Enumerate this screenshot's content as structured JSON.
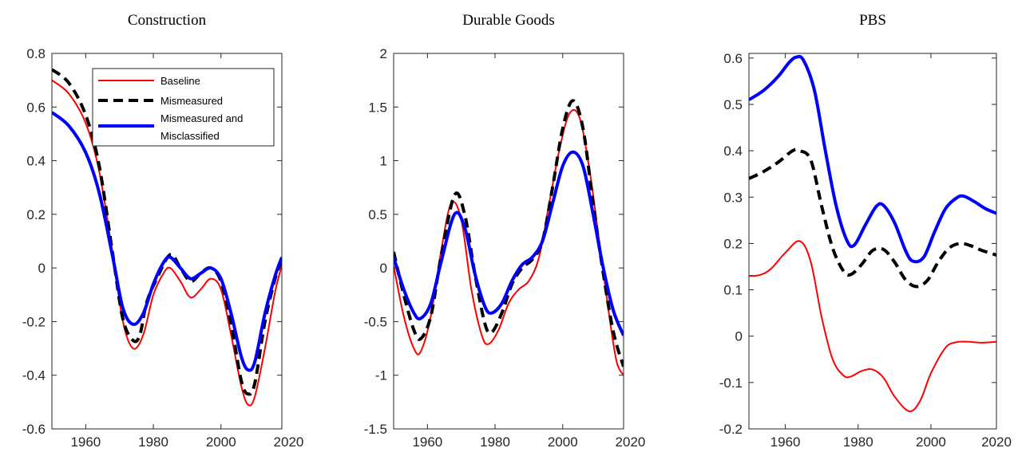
{
  "chart_data": [
    {
      "type": "line",
      "title": "Construction",
      "xlim": [
        1950,
        2018
      ],
      "ylim": [
        -0.6,
        0.8
      ],
      "xticks": [
        1960,
        1980,
        2000,
        2020
      ],
      "yticks": [
        -0.6,
        -0.4,
        -0.2,
        0,
        0.2,
        0.4,
        0.6,
        0.8
      ],
      "ytick_labels": [
        "-0.6",
        "-0.4",
        "-0.2",
        "0",
        "0.2",
        "0.4",
        "0.6",
        "0.8"
      ],
      "grid": false,
      "legend": "top-right",
      "series": [
        {
          "name": "Baseline",
          "color": "#ff0000",
          "style": "solid",
          "width": 2,
          "x": [
            1950,
            1955,
            1960,
            1964,
            1968,
            1971,
            1974,
            1977,
            1980,
            1983,
            1985,
            1988,
            1991,
            1994,
            1997,
            2000,
            2003,
            2006,
            2008,
            2010,
            2013,
            2016,
            2018
          ],
          "y": [
            0.7,
            0.65,
            0.54,
            0.36,
            0.05,
            -0.2,
            -0.3,
            -0.25,
            -0.1,
            -0.02,
            0.0,
            -0.05,
            -0.11,
            -0.08,
            -0.04,
            -0.08,
            -0.25,
            -0.44,
            -0.51,
            -0.48,
            -0.3,
            -0.09,
            0.01
          ]
        },
        {
          "name": "Mismeasured",
          "color": "#000000",
          "style": "dashed",
          "width": 4,
          "x": [
            1950,
            1955,
            1960,
            1964,
            1968,
            1971,
            1974,
            1976,
            1978,
            1981,
            1985,
            1988,
            1991,
            1994,
            1997,
            2000,
            2003,
            2006,
            2008,
            2010,
            2013,
            2016,
            2018
          ],
          "y": [
            0.74,
            0.69,
            0.57,
            0.38,
            0.05,
            -0.19,
            -0.27,
            -0.25,
            -0.13,
            -0.04,
            0.05,
            0.0,
            -0.05,
            -0.02,
            0.0,
            -0.05,
            -0.21,
            -0.42,
            -0.47,
            -0.43,
            -0.2,
            -0.04,
            0.03
          ]
        },
        {
          "name": "Mismeasured and Misclassified",
          "color": "#0000ff",
          "style": "solid",
          "width": 4,
          "x": [
            1950,
            1955,
            1960,
            1964,
            1968,
            1971,
            1974,
            1977,
            1980,
            1983,
            1985,
            1988,
            1991,
            1994,
            1997,
            2000,
            2003,
            2006,
            2008,
            2010,
            2013,
            2016,
            2018
          ],
          "y": [
            0.58,
            0.53,
            0.43,
            0.28,
            0.04,
            -0.15,
            -0.21,
            -0.17,
            -0.06,
            0.02,
            0.04,
            0.0,
            -0.04,
            -0.02,
            0.0,
            -0.04,
            -0.17,
            -0.33,
            -0.38,
            -0.35,
            -0.17,
            -0.03,
            0.04
          ]
        }
      ],
      "legend_labels": [
        "Baseline",
        "Mismeasured",
        "Mismeasured and",
        "Misclassified"
      ]
    },
    {
      "type": "line",
      "title": "Durable Goods",
      "xlim": [
        1950,
        2018
      ],
      "ylim": [
        -1.5,
        2
      ],
      "xticks": [
        1960,
        1980,
        2000,
        2020
      ],
      "yticks": [
        -1.5,
        -1,
        -0.5,
        0,
        0.5,
        1,
        1.5,
        2
      ],
      "ytick_labels": [
        "-1.5",
        "-1",
        "-0.5",
        "0",
        "0.5",
        "1",
        "1.5",
        "2"
      ],
      "grid": false,
      "series": [
        {
          "name": "Baseline",
          "color": "#ff0000",
          "style": "solid",
          "width": 2,
          "x": [
            1950,
            1953,
            1956,
            1958,
            1961,
            1964,
            1967,
            1970,
            1973,
            1976,
            1978,
            1981,
            1984,
            1987,
            1990,
            1993,
            1996,
            1999,
            2002,
            2005,
            2008,
            2011,
            2014,
            2016,
            2018
          ],
          "y": [
            0.02,
            -0.45,
            -0.75,
            -0.78,
            -0.45,
            0.15,
            0.6,
            0.45,
            -0.2,
            -0.62,
            -0.71,
            -0.58,
            -0.33,
            -0.2,
            -0.12,
            0.1,
            0.6,
            1.1,
            1.44,
            1.4,
            0.9,
            0.2,
            -0.5,
            -0.88,
            -1.0
          ]
        },
        {
          "name": "Mismeasured",
          "color": "#000000",
          "style": "dashed",
          "width": 4,
          "x": [
            1950,
            1953,
            1956,
            1958,
            1961,
            1964,
            1968,
            1971,
            1974,
            1977,
            1979,
            1982,
            1985,
            1988,
            1991,
            1994,
            1997,
            2000,
            2003,
            2006,
            2009,
            2012,
            2015,
            2018
          ],
          "y": [
            0.15,
            -0.25,
            -0.58,
            -0.66,
            -0.45,
            0.1,
            0.68,
            0.5,
            -0.05,
            -0.52,
            -0.6,
            -0.42,
            -0.15,
            0.0,
            0.08,
            0.25,
            0.75,
            1.3,
            1.56,
            1.3,
            0.6,
            -0.05,
            -0.6,
            -0.92
          ]
        },
        {
          "name": "Mismeasured and Misclassified",
          "color": "#0000ff",
          "style": "solid",
          "width": 4,
          "x": [
            1950,
            1953,
            1956,
            1958,
            1961,
            1964,
            1968,
            1971,
            1974,
            1977,
            1979,
            1982,
            1985,
            1988,
            1991,
            1994,
            1997,
            2000,
            2003,
            2006,
            2009,
            2012,
            2015,
            2018
          ],
          "y": [
            0.1,
            -0.2,
            -0.42,
            -0.47,
            -0.33,
            0.05,
            0.5,
            0.38,
            -0.05,
            -0.36,
            -0.42,
            -0.33,
            -0.12,
            0.03,
            0.1,
            0.25,
            0.6,
            0.95,
            1.08,
            0.95,
            0.5,
            0.0,
            -0.4,
            -0.63
          ]
        }
      ]
    },
    {
      "type": "line",
      "title": "PBS",
      "xlim": [
        1950,
        2018
      ],
      "ylim": [
        -0.2,
        0.61
      ],
      "xticks": [
        1960,
        1980,
        2000,
        2020
      ],
      "yticks": [
        -0.2,
        -0.1,
        0,
        0.1,
        0.2,
        0.3,
        0.4,
        0.5,
        0.6
      ],
      "ytick_labels": [
        "-0.2",
        "-0.1",
        "0",
        "0.1",
        "0.2",
        "0.3",
        "0.4",
        "0.5",
        "0.6"
      ],
      "grid": false,
      "series": [
        {
          "name": "Baseline",
          "color": "#ff0000",
          "style": "solid",
          "width": 2,
          "x": [
            1950,
            1953,
            1956,
            1960,
            1964,
            1967,
            1970,
            1973,
            1976,
            1978,
            1981,
            1984,
            1987,
            1990,
            1994,
            1997,
            2000,
            2004,
            2007,
            2010,
            2014,
            2018
          ],
          "y": [
            0.13,
            0.132,
            0.145,
            0.18,
            0.205,
            0.16,
            0.04,
            -0.05,
            -0.085,
            -0.087,
            -0.075,
            -0.072,
            -0.09,
            -0.13,
            -0.162,
            -0.14,
            -0.08,
            -0.025,
            -0.013,
            -0.012,
            -0.014,
            -0.012
          ]
        },
        {
          "name": "Mismeasured",
          "color": "#000000",
          "style": "dashed",
          "width": 4,
          "x": [
            1950,
            1954,
            1958,
            1962,
            1964,
            1967,
            1970,
            1973,
            1976,
            1978,
            1981,
            1984,
            1987,
            1990,
            1993,
            1996,
            1999,
            2002,
            2005,
            2008,
            2011,
            2014,
            2018
          ],
          "y": [
            0.34,
            0.355,
            0.375,
            0.4,
            0.4,
            0.38,
            0.28,
            0.19,
            0.14,
            0.133,
            0.155,
            0.185,
            0.187,
            0.16,
            0.122,
            0.107,
            0.12,
            0.16,
            0.19,
            0.2,
            0.195,
            0.185,
            0.175
          ]
        },
        {
          "name": "Mismeasured and Misclassified",
          "color": "#0000ff",
          "style": "solid",
          "width": 4,
          "x": [
            1950,
            1954,
            1958,
            1961,
            1963,
            1965,
            1968,
            1971,
            1974,
            1977,
            1979,
            1982,
            1985,
            1987,
            1990,
            1993,
            1995,
            1998,
            2001,
            2004,
            2007,
            2009,
            2012,
            2015,
            2018
          ],
          "y": [
            0.51,
            0.53,
            0.56,
            0.59,
            0.602,
            0.595,
            0.53,
            0.4,
            0.28,
            0.205,
            0.197,
            0.24,
            0.28,
            0.282,
            0.245,
            0.185,
            0.162,
            0.17,
            0.225,
            0.275,
            0.298,
            0.302,
            0.29,
            0.275,
            0.265
          ]
        }
      ]
    }
  ]
}
